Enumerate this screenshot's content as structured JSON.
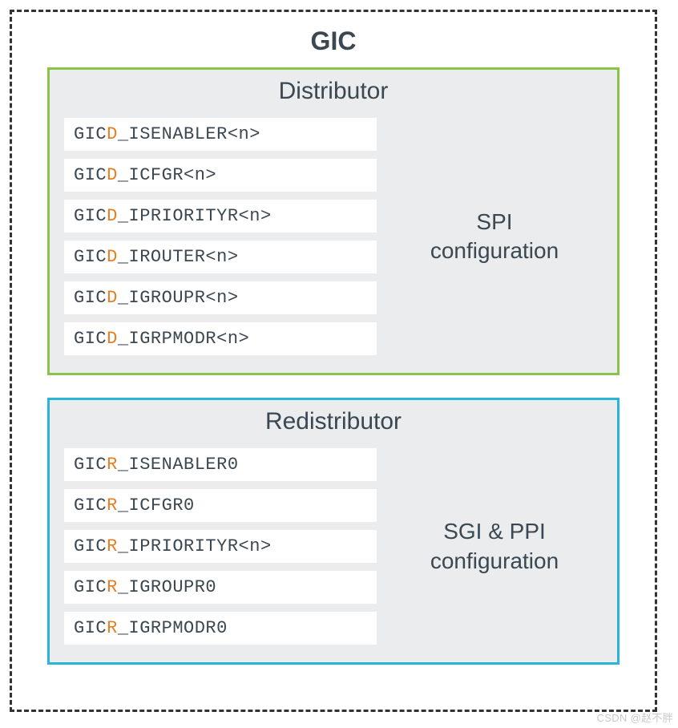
{
  "diagram": {
    "type": "infographic",
    "outer": {
      "title": "GIC",
      "border_style": "dashed",
      "border_color": "#333333",
      "border_width": 3,
      "background_color": "#ffffff",
      "title_fontsize": 32,
      "title_color": "#3b4751",
      "title_weight": 700
    },
    "panel_common": {
      "background_color": "#eaecee",
      "title_fontsize": 30,
      "title_color": "#3b4751",
      "register_bg": "#ffffff",
      "register_font": "monospace",
      "register_fontsize": 22,
      "register_text_color": "#3b4751",
      "accent_color": "#e67e22",
      "label_fontsize": 28,
      "label_color": "#3b4751"
    },
    "panels": [
      {
        "id": "distributor",
        "title": "Distributor",
        "border_color": "#8bc34a",
        "border_width": 3,
        "label_lines": [
          "SPI",
          "configuration"
        ],
        "registers": [
          {
            "prefix": "GIC",
            "accent": "D",
            "suffix": "_ISENABLER<n>"
          },
          {
            "prefix": "GIC",
            "accent": "D",
            "suffix": "_ICFGR<n>"
          },
          {
            "prefix": "GIC",
            "accent": "D",
            "suffix": "_IPRIORITYR<n>"
          },
          {
            "prefix": "GIC",
            "accent": "D",
            "suffix": "_IROUTER<n>"
          },
          {
            "prefix": "GIC",
            "accent": "D",
            "suffix": "_IGROUPR<n>"
          },
          {
            "prefix": "GIC",
            "accent": "D",
            "suffix": "_IGRPMODR<n>"
          }
        ]
      },
      {
        "id": "redistributor",
        "title": "Redistributor",
        "border_color": "#29b6d6",
        "border_width": 3,
        "label_lines": [
          "SGI & PPI",
          "configuration"
        ],
        "registers": [
          {
            "prefix": "GIC",
            "accent": "R",
            "suffix": "_ISENABLER0"
          },
          {
            "prefix": "GIC",
            "accent": "R",
            "suffix": "_ICFGR0"
          },
          {
            "prefix": "GIC",
            "accent": "R",
            "suffix": "_IPRIORITYR<n>"
          },
          {
            "prefix": "GIC",
            "accent": "R",
            "suffix": "_IGROUPR0"
          },
          {
            "prefix": "GIC",
            "accent": "R",
            "suffix": "_IGRPMODR0"
          }
        ]
      }
    ]
  },
  "watermark": "CSDN @赵不胖"
}
